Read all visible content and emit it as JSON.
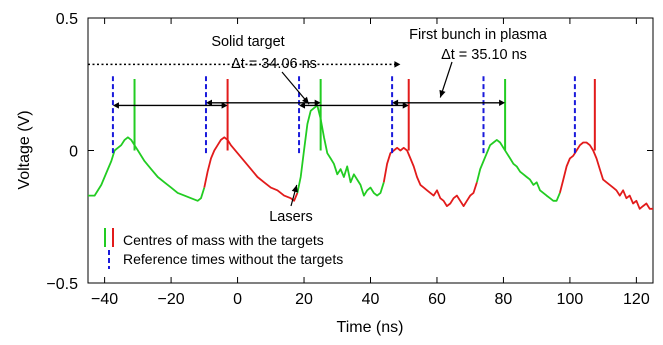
{
  "chart_data": {
    "type": "line",
    "xlabel": "Time (ns)",
    "ylabel": "Voltage (V)",
    "xlim": [
      -45,
      125
    ],
    "ylim": [
      -0.5,
      0.5
    ],
    "x_ticks": [
      -40,
      -20,
      0,
      20,
      40,
      60,
      80,
      100,
      120
    ],
    "x_tick_labels": [
      "−40",
      "−20",
      "0",
      "20",
      "40",
      "60",
      "80",
      "100",
      "120"
    ],
    "y_ticks": [
      -0.5,
      0,
      0.5
    ],
    "y_tick_labels": [
      "−0.5",
      "0",
      "0.5"
    ],
    "grid": false,
    "colors": {
      "green": "#22cc22",
      "red": "#e21b1b",
      "blue": "#1a1adb",
      "black": "#000000"
    },
    "signal_segments": [
      {
        "color": "green",
        "points": [
          [
            -45,
            -0.17
          ],
          [
            -43,
            -0.17
          ],
          [
            -41,
            -0.13
          ],
          [
            -39,
            -0.07
          ],
          [
            -38,
            -0.04
          ],
          [
            -37,
            0.0
          ],
          [
            -36,
            0.01
          ],
          [
            -35,
            0.02
          ],
          [
            -34,
            0.04
          ],
          [
            -33,
            0.05
          ],
          [
            -32,
            0.04
          ],
          [
            -31,
            0.02
          ],
          [
            -30,
            0.0
          ],
          [
            -28,
            -0.04
          ],
          [
            -26,
            -0.07
          ],
          [
            -24,
            -0.1
          ],
          [
            -22,
            -0.12
          ],
          [
            -20,
            -0.14
          ],
          [
            -18,
            -0.16
          ],
          [
            -16,
            -0.17
          ],
          [
            -14,
            -0.18
          ],
          [
            -12,
            -0.19
          ],
          [
            -11,
            -0.18
          ],
          [
            -10,
            -0.14
          ]
        ]
      },
      {
        "color": "red",
        "points": [
          [
            -10,
            -0.14
          ],
          [
            -9,
            -0.08
          ],
          [
            -8,
            -0.03
          ],
          [
            -7,
            0.0
          ],
          [
            -6,
            0.02
          ],
          [
            -5,
            0.04
          ],
          [
            -4,
            0.05
          ],
          [
            -3,
            0.04
          ],
          [
            -2,
            0.02
          ],
          [
            0,
            -0.01
          ],
          [
            2,
            -0.04
          ],
          [
            4,
            -0.07
          ],
          [
            6,
            -0.1
          ],
          [
            8,
            -0.12
          ],
          [
            10,
            -0.14
          ],
          [
            12,
            -0.15
          ],
          [
            14,
            -0.17
          ],
          [
            16,
            -0.18
          ],
          [
            17,
            -0.19
          ],
          [
            18,
            -0.16
          ]
        ]
      },
      {
        "color": "green",
        "points": [
          [
            18,
            -0.16
          ],
          [
            19,
            -0.1
          ],
          [
            20,
            0.0
          ],
          [
            21,
            0.1
          ],
          [
            22,
            0.15
          ],
          [
            23,
            0.16
          ],
          [
            24,
            0.17
          ],
          [
            25,
            0.12
          ],
          [
            26,
            0.05
          ],
          [
            27,
            -0.01
          ],
          [
            28,
            -0.03
          ],
          [
            29,
            -0.05
          ],
          [
            30,
            -0.09
          ],
          [
            31,
            -0.07
          ],
          [
            32,
            -0.1
          ],
          [
            33,
            -0.06
          ],
          [
            34,
            -0.12
          ],
          [
            35,
            -0.09
          ],
          [
            36,
            -0.11
          ],
          [
            37,
            -0.13
          ],
          [
            38,
            -0.17
          ],
          [
            39,
            -0.15
          ],
          [
            40,
            -0.14
          ],
          [
            41,
            -0.16
          ],
          [
            42,
            -0.17
          ],
          [
            43,
            -0.16
          ],
          [
            44,
            -0.12
          ]
        ]
      },
      {
        "color": "red",
        "points": [
          [
            44,
            -0.12
          ],
          [
            45,
            -0.05
          ],
          [
            46,
            -0.01
          ],
          [
            47,
            0.0
          ],
          [
            48,
            0.01
          ],
          [
            49,
            0.0
          ],
          [
            50,
            0.01
          ],
          [
            51,
            0.0
          ],
          [
            52,
            -0.03
          ],
          [
            53,
            -0.06
          ],
          [
            54,
            -0.1
          ],
          [
            55,
            -0.13
          ],
          [
            56,
            -0.14
          ],
          [
            57,
            -0.15
          ],
          [
            58,
            -0.16
          ],
          [
            59,
            -0.17
          ],
          [
            60,
            -0.15
          ],
          [
            61,
            -0.18
          ],
          [
            62,
            -0.19
          ],
          [
            63,
            -0.21
          ],
          [
            64,
            -0.2
          ],
          [
            65,
            -0.18
          ],
          [
            66,
            -0.17
          ],
          [
            67,
            -0.19
          ],
          [
            68,
            -0.21
          ],
          [
            69,
            -0.19
          ],
          [
            70,
            -0.17
          ],
          [
            71,
            -0.16
          ],
          [
            72,
            -0.12
          ]
        ]
      },
      {
        "color": "green",
        "points": [
          [
            72,
            -0.12
          ],
          [
            73,
            -0.07
          ],
          [
            74,
            -0.04
          ],
          [
            75,
            -0.01
          ],
          [
            76,
            0.02
          ],
          [
            77,
            0.03
          ],
          [
            78,
            0.04
          ],
          [
            79,
            0.03
          ],
          [
            80,
            0.01
          ],
          [
            81,
            -0.01
          ],
          [
            82,
            -0.03
          ],
          [
            83,
            -0.05
          ],
          [
            84,
            -0.06
          ],
          [
            85,
            -0.08
          ],
          [
            86,
            -0.09
          ],
          [
            87,
            -0.1
          ],
          [
            88,
            -0.11
          ],
          [
            89,
            -0.13
          ],
          [
            90,
            -0.12
          ],
          [
            91,
            -0.15
          ],
          [
            92,
            -0.16
          ],
          [
            93,
            -0.17
          ],
          [
            94,
            -0.18
          ],
          [
            95,
            -0.19
          ],
          [
            96,
            -0.19
          ],
          [
            97,
            -0.16
          ]
        ]
      },
      {
        "color": "red",
        "points": [
          [
            97,
            -0.16
          ],
          [
            98,
            -0.11
          ],
          [
            99,
            -0.06
          ],
          [
            100,
            -0.03
          ],
          [
            101,
            -0.02
          ],
          [
            102,
            0.0
          ],
          [
            103,
            0.02
          ],
          [
            104,
            0.03
          ],
          [
            105,
            0.03
          ],
          [
            106,
            0.02
          ],
          [
            107,
            0.0
          ],
          [
            108,
            -0.03
          ],
          [
            109,
            -0.07
          ],
          [
            110,
            -0.11
          ],
          [
            111,
            -0.12
          ],
          [
            112,
            -0.13
          ],
          [
            113,
            -0.14
          ],
          [
            114,
            -0.15
          ],
          [
            115,
            -0.17
          ],
          [
            116,
            -0.15
          ],
          [
            117,
            -0.18
          ],
          [
            118,
            -0.17
          ],
          [
            119,
            -0.2
          ],
          [
            120,
            -0.19
          ],
          [
            121,
            -0.22
          ],
          [
            122,
            -0.21
          ],
          [
            123,
            -0.2
          ],
          [
            124,
            -0.22
          ],
          [
            125,
            -0.22
          ]
        ]
      }
    ],
    "reference_times_blue_dashed": [
      -37.5,
      -9.5,
      18.5,
      46.5,
      74,
      101.5
    ],
    "reference_line_y_range": [
      -0.01,
      0.28
    ],
    "centre_of_mass_lines": [
      {
        "x": -31,
        "color": "green"
      },
      {
        "x": -3,
        "color": "red"
      },
      {
        "x": 25,
        "color": "green"
      },
      {
        "x": 51.5,
        "color": "red"
      },
      {
        "x": 80.5,
        "color": "green"
      },
      {
        "x": 107.5,
        "color": "red"
      }
    ],
    "centre_line_y_range": [
      0.0,
      0.27
    ],
    "double_arrows": [
      {
        "x1": -37.5,
        "x2": -3,
        "y": 0.17
      },
      {
        "x1": -9.5,
        "x2": 25,
        "y": 0.18
      },
      {
        "x1": 18.5,
        "x2": 51.5,
        "y": 0.17
      },
      {
        "x1": 46.5,
        "x2": 80.5,
        "y": 0.18
      }
    ],
    "dotted_arrow": {
      "x1": -45,
      "x2": 49,
      "y": 0.325
    },
    "texts": {
      "solid_target_title": "Solid target",
      "solid_target_dt": "Δt = 34.06 ns",
      "plasma_title": "First bunch in plasma",
      "plasma_dt": "Δt = 35.10 ns",
      "lasers": "Lasers"
    },
    "solid_target_pointer": {
      "to_x": 21.5,
      "to_y": 0.175
    },
    "plasma_pointer": {
      "to_x": 61,
      "to_y": 0.2
    },
    "lasers_pointer": {
      "to_x": 17.8,
      "to_y": -0.13
    },
    "legend": [
      {
        "label": "Centres of mass with the targets",
        "marks": [
          "green",
          "red"
        ],
        "style": "solid"
      },
      {
        "label": "Reference times without the targets",
        "marks": [
          "blue"
        ],
        "style": "dashed"
      }
    ]
  }
}
